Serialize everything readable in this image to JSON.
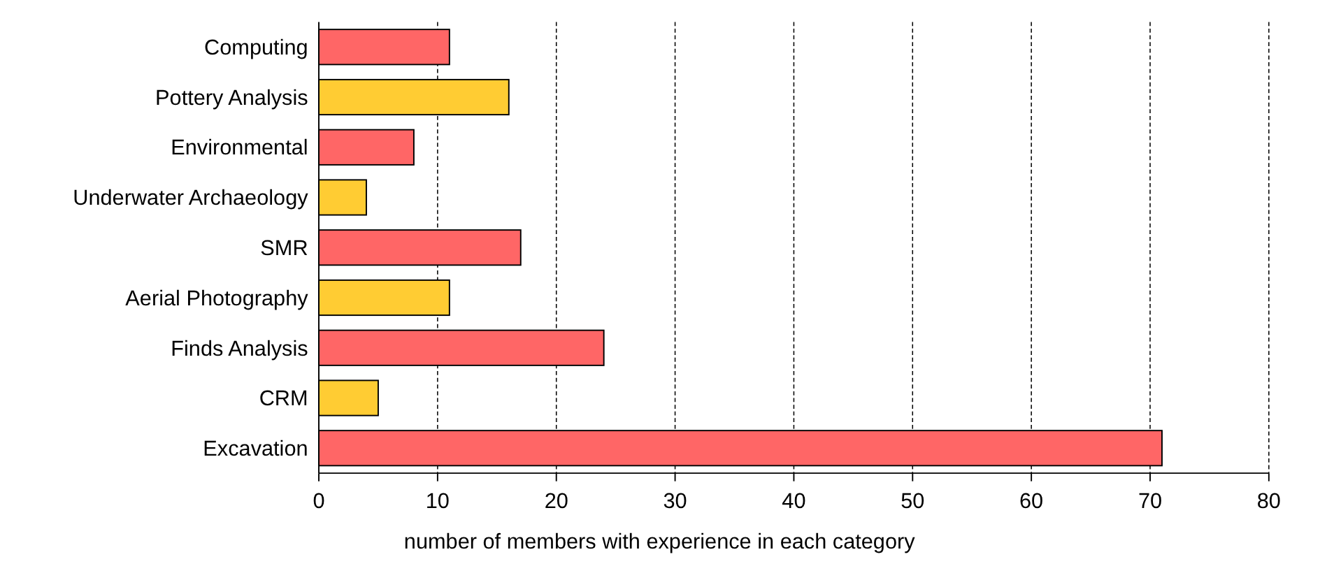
{
  "chart_data": {
    "type": "bar",
    "orientation": "horizontal",
    "xlabel": "number of members with experience in each category",
    "categories": [
      "Computing",
      "Pottery Analysis",
      "Environmental",
      "Underwater Archaeology",
      "SMR",
      "Aerial Photography",
      "Finds Analysis",
      "CRM",
      "Excavation"
    ],
    "values": [
      11,
      16,
      8,
      4,
      17,
      11,
      24,
      5,
      71
    ],
    "colors": [
      "#ff6666",
      "#ffcc33",
      "#ff6666",
      "#ffcc33",
      "#ff6666",
      "#ffcc33",
      "#ff6666",
      "#ffcc33",
      "#ff6666"
    ],
    "xlim": [
      0,
      80
    ],
    "xticks": [
      0,
      10,
      20,
      30,
      40,
      50,
      60,
      70,
      80
    ],
    "grid": "x"
  }
}
